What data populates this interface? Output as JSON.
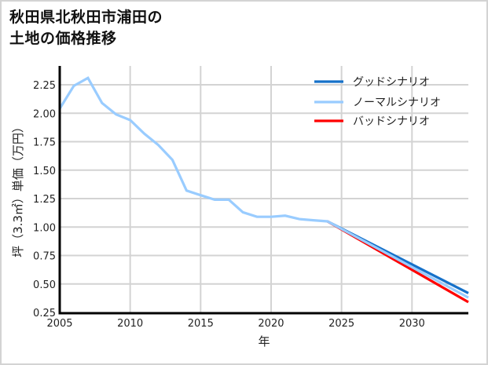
{
  "title": {
    "line1": "秋田県北秋田市浦田の",
    "line2": "土地の価格推移"
  },
  "colors": {
    "good": "#1671c9",
    "normal": "#99ccff",
    "bad": "#ff0000",
    "grid": "#d3d3d3",
    "axis": "#000000"
  },
  "chart_data": {
    "type": "line",
    "title": "秋田県北秋田市浦田の土地の価格推移",
    "xlabel": "年",
    "ylabel": "坪（3.3㎡）単価（万円）",
    "xlim": [
      2005,
      2034
    ],
    "ylim": [
      0.25,
      2.45
    ],
    "xticks": [
      2005,
      2010,
      2015,
      2020,
      2025,
      2030
    ],
    "yticks": [
      0.25,
      0.5,
      0.75,
      1.0,
      1.25,
      1.5,
      1.75,
      2.0,
      2.25
    ],
    "ytick_labels": [
      "0.25",
      "0.50",
      "0.75",
      "1.00",
      "1.25",
      "1.50",
      "1.75",
      "2.00",
      "2.25"
    ],
    "grid": true,
    "legend_position": "upper right",
    "series": [
      {
        "name": "グッドシナリオ",
        "key": "good",
        "x": [
          2024,
          2034
        ],
        "values": [
          1.05,
          0.42
        ]
      },
      {
        "name": "ノーマルシナリオ",
        "key": "normal",
        "x": [
          2005,
          2006,
          2007,
          2008,
          2009,
          2010,
          2011,
          2012,
          2013,
          2014,
          2015,
          2016,
          2017,
          2018,
          2019,
          2020,
          2021,
          2022,
          2023,
          2024,
          2034
        ],
        "values": [
          2.04,
          2.24,
          2.31,
          2.09,
          1.99,
          1.94,
          1.82,
          1.72,
          1.59,
          1.32,
          1.28,
          1.24,
          1.24,
          1.13,
          1.09,
          1.09,
          1.1,
          1.07,
          1.06,
          1.05,
          0.38
        ]
      },
      {
        "name": "バッドシナリオ",
        "key": "bad",
        "x": [
          2024,
          2034
        ],
        "values": [
          1.05,
          0.34
        ]
      }
    ]
  }
}
